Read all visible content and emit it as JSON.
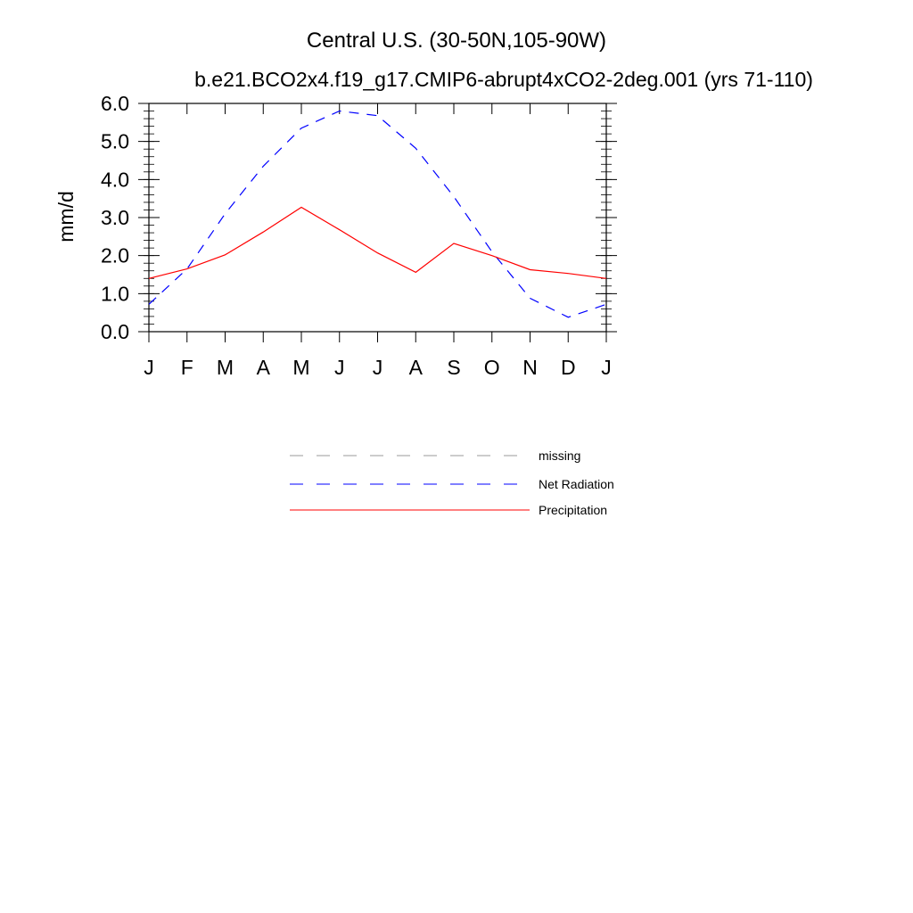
{
  "chart_data": {
    "type": "line",
    "title": "Central U.S. (30-50N,105-90W)",
    "subtitle": "b.e21.BCO2x4.f19_g17.CMIP6-abrupt4xCO2-2deg.001 (yrs 71-110)",
    "xlabel": "",
    "ylabel": "mm/d",
    "ylim": [
      0,
      6
    ],
    "yticks": [
      "0.0",
      "1.0",
      "2.0",
      "3.0",
      "4.0",
      "5.0",
      "6.0"
    ],
    "categories": [
      "J",
      "F",
      "M",
      "A",
      "M",
      "J",
      "J",
      "A",
      "S",
      "O",
      "N",
      "D",
      "J"
    ],
    "grid": false,
    "legend_position": "bottom",
    "series": [
      {
        "name": "Net Radiation",
        "color": "#0000ff",
        "dash": "dashed",
        "values": [
          0.72,
          1.65,
          3.1,
          4.35,
          5.35,
          5.8,
          5.68,
          4.82,
          3.55,
          2.1,
          0.88,
          0.38,
          0.72
        ]
      },
      {
        "name": "Precipitation",
        "color": "#ff0000",
        "dash": "solid",
        "values": [
          1.4,
          1.65,
          2.02,
          2.62,
          3.27,
          2.68,
          2.07,
          1.56,
          2.32,
          2.0,
          1.63,
          1.53,
          1.4
        ]
      }
    ],
    "legend": [
      {
        "name": "missing",
        "color": "#999999",
        "dash": "dashed"
      },
      {
        "name": "Net Radiation",
        "color": "#0000ff",
        "dash": "dashed"
      },
      {
        "name": "Precipitation",
        "color": "#ff0000",
        "dash": "solid"
      }
    ]
  }
}
